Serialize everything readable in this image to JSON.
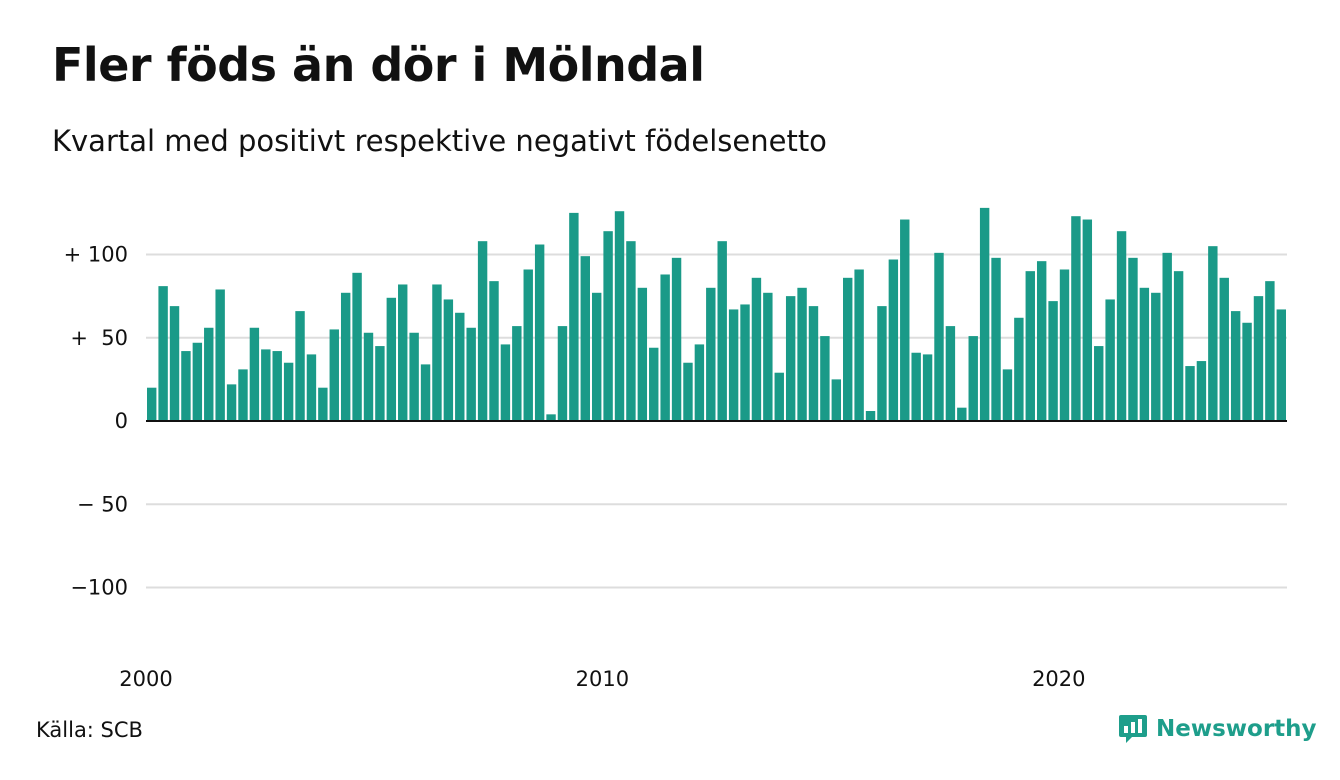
{
  "header": {
    "title": "Fler föds än dör i Mölndal",
    "subtitle": "Kvartal med positivt respektive negativt födelsenetto"
  },
  "footer": {
    "source": "Källa: SCB",
    "brand": "Newsworthy"
  },
  "colors": {
    "bar": "#1a9a88",
    "grid": "#dddddd",
    "baseline": "#111111",
    "brand": "#1e9e8b"
  },
  "chart_data": {
    "type": "bar",
    "ylim": [
      -140,
      140
    ],
    "yticks": [
      {
        "value": 100,
        "label": "+ 100"
      },
      {
        "value": 50,
        "label": "+  50"
      },
      {
        "value": 0,
        "label": "0"
      },
      {
        "value": -50,
        "label": "− 50"
      },
      {
        "value": -100,
        "label": "−100"
      }
    ],
    "xticks": [
      {
        "index": 0,
        "label": "2000"
      },
      {
        "index": 40,
        "label": "2010"
      },
      {
        "index": 80,
        "label": "2020"
      }
    ],
    "values": [
      20,
      81,
      69,
      42,
      47,
      56,
      79,
      22,
      31,
      56,
      43,
      42,
      35,
      66,
      40,
      20,
      55,
      77,
      89,
      53,
      45,
      74,
      82,
      53,
      34,
      82,
      73,
      65,
      56,
      108,
      84,
      46,
      57,
      91,
      106,
      4,
      57,
      125,
      99,
      77,
      114,
      126,
      108,
      80,
      44,
      88,
      98,
      35,
      46,
      80,
      108,
      67,
      70,
      86,
      77,
      29,
      75,
      80,
      69,
      51,
      25,
      86,
      91,
      6,
      69,
      97,
      121,
      41,
      40,
      101,
      57,
      8,
      51,
      128,
      98,
      31,
      62,
      90,
      96,
      72,
      91,
      123,
      121,
      45,
      73,
      114,
      98,
      80,
      77,
      101,
      90,
      33,
      36,
      105,
      86,
      66,
      59,
      75,
      84,
      67
    ]
  }
}
